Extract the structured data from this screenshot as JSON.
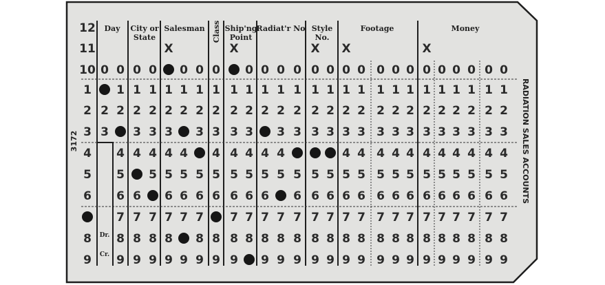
{
  "card": {
    "card_number": "3172",
    "side_title": "RADIATION SALES ACCOUNTS",
    "colors": {
      "card": "#e2e2e0",
      "ink": "#1e1e1e",
      "punch": "#161616"
    },
    "row_labels": [
      "12",
      "11",
      "10",
      "1",
      "2",
      "3",
      "4",
      "5",
      "6",
      "7",
      "8",
      "9"
    ],
    "digit_rows": [
      "0",
      "1",
      "2",
      "3",
      "4",
      "5",
      "6",
      "7",
      "8",
      "9"
    ],
    "fields": [
      {
        "key": "day",
        "label": [
          "Day"
        ],
        "columns": 2
      },
      {
        "key": "city",
        "label": [
          "City or",
          "State"
        ],
        "columns": 2
      },
      {
        "key": "salesman",
        "label": [
          "Salesman"
        ],
        "columns": 3
      },
      {
        "key": "class",
        "label": [
          "Class"
        ],
        "columns": 1
      },
      {
        "key": "shipping",
        "label": [
          "Ship'ng",
          "Point"
        ],
        "columns": 2
      },
      {
        "key": "radiator",
        "label": [
          "Radiat'r No"
        ],
        "columns": 3
      },
      {
        "key": "style",
        "label": [
          "Style",
          "No."
        ],
        "columns": 2
      },
      {
        "key": "footage",
        "label": [
          "Footage"
        ],
        "columns": 5
      },
      {
        "key": "money",
        "label": [
          "Money"
        ],
        "columns": 6
      }
    ],
    "x_mark": "X",
    "x_marks": [
      {
        "field": "salesman",
        "col": 0
      },
      {
        "field": "shipping",
        "col": 0
      },
      {
        "field": "style",
        "col": 0
      },
      {
        "field": "footage",
        "col": 0
      },
      {
        "field": "money",
        "col": 0
      }
    ],
    "debit_label": "Dr.",
    "credit_label": "Cr.",
    "punches": [
      {
        "field": "rowlabel",
        "col": 0,
        "row": "7"
      },
      {
        "field": "day",
        "col": 0,
        "row": "1"
      },
      {
        "field": "day",
        "col": 1,
        "row": "3"
      },
      {
        "field": "city",
        "col": 0,
        "row": "5"
      },
      {
        "field": "city",
        "col": 1,
        "row": "6"
      },
      {
        "field": "salesman",
        "col": 0,
        "row": "0"
      },
      {
        "field": "salesman",
        "col": 1,
        "row": "3"
      },
      {
        "field": "salesman",
        "col": 1,
        "row": "8"
      },
      {
        "field": "salesman",
        "col": 2,
        "row": "4"
      },
      {
        "field": "class",
        "col": 0,
        "row": "7"
      },
      {
        "field": "shipping",
        "col": 0,
        "row": "0"
      },
      {
        "field": "shipping",
        "col": 1,
        "row": "9"
      },
      {
        "field": "radiator",
        "col": 0,
        "row": "3"
      },
      {
        "field": "radiator",
        "col": 1,
        "row": "6"
      },
      {
        "field": "radiator",
        "col": 2,
        "row": "4"
      },
      {
        "field": "style",
        "col": 0,
        "row": "4"
      },
      {
        "field": "style",
        "col": 1,
        "row": "4"
      }
    ]
  }
}
